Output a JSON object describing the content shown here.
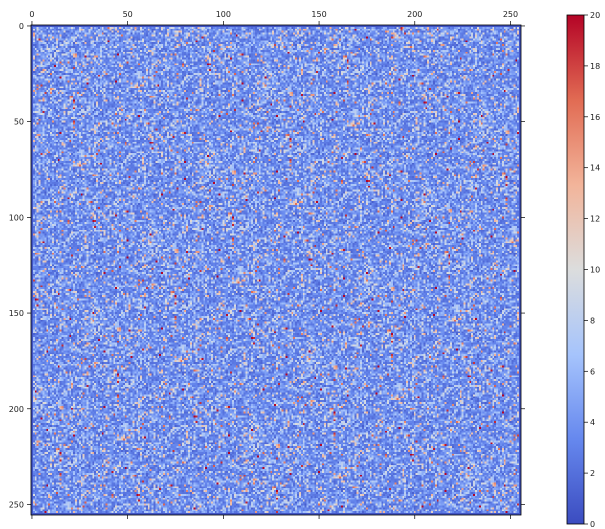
{
  "chart_data": {
    "type": "heatmap",
    "title": "",
    "xlabel": "",
    "ylabel": "",
    "matrix_shape": [
      256,
      256
    ],
    "xlim": [
      -0.5,
      255.5
    ],
    "ylim": [
      255.5,
      -0.5
    ],
    "x_axis_position": "top",
    "y_axis_inverted": true,
    "x_ticks": [
      0,
      50,
      100,
      150,
      200,
      250
    ],
    "y_ticks": [
      0,
      50,
      100,
      150,
      200,
      250
    ],
    "x_tick_labels": [
      "0",
      "50",
      "100",
      "150",
      "200",
      "250"
    ],
    "y_tick_labels": [
      "0",
      "50",
      "100",
      "150",
      "200",
      "250"
    ],
    "colormap": "coolwarm",
    "colormap_stops": [
      "#3b4cc0",
      "#6688ee",
      "#a6c4fc",
      "#dcdddd",
      "#f2b49a",
      "#e16b53",
      "#b40426"
    ],
    "value_range": [
      0,
      20
    ],
    "typical_value_range": [
      2,
      9
    ],
    "colorbar": {
      "position": "right",
      "ticks": [
        0,
        2,
        4,
        6,
        8,
        10,
        12,
        14,
        16,
        18,
        20
      ],
      "tick_labels": [
        "0",
        "2",
        "4",
        "6",
        "8",
        "10",
        "12",
        "14",
        "16",
        "18",
        "20"
      ]
    },
    "grid": false,
    "legend": "none"
  }
}
